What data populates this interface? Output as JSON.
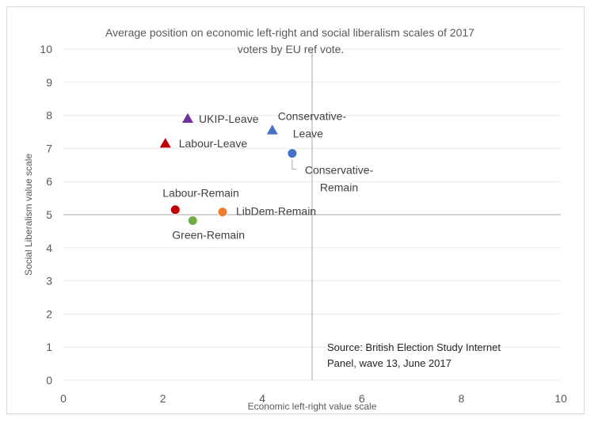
{
  "chart_data": {
    "type": "scatter",
    "title": "Average position on economic left-right and social liberalism scales of 2017 voters by EU ref vote.",
    "title_lines": [
      "Average position on economic left-right and social liberalism scales of 2017",
      "voters by EU ref vote."
    ],
    "xlabel": "Economic left-right value scale",
    "ylabel": "Social Liberalism value scale",
    "xlim": [
      0,
      10
    ],
    "ylim": [
      0,
      10
    ],
    "x_ticks": [
      0,
      2,
      4,
      6,
      8,
      10
    ],
    "y_ticks": [
      0,
      1,
      2,
      3,
      4,
      5,
      6,
      7,
      8,
      9,
      10
    ],
    "reference_lines": {
      "x": 5,
      "y": 5
    },
    "gridlines": "horizontal",
    "points": [
      {
        "name": "UKIP-Leave",
        "label_lines": [
          "UKIP-Leave"
        ],
        "x": 2.5,
        "y": 7.9,
        "marker": "triangle",
        "color": "#7030a0"
      },
      {
        "name": "Labour-Leave",
        "label_lines": [
          "Labour-Leave"
        ],
        "x": 2.05,
        "y": 7.15,
        "marker": "triangle",
        "color": "#c00000"
      },
      {
        "name": "Conservative-Leave",
        "label_lines": [
          "Conservative-",
          "Leave"
        ],
        "x": 4.2,
        "y": 7.55,
        "marker": "triangle",
        "color": "#4472c4"
      },
      {
        "name": "Conservative-Remain",
        "label_lines": [
          "Conservative-",
          "Remain"
        ],
        "x": 4.6,
        "y": 6.85,
        "marker": "circle",
        "color": "#4472c4"
      },
      {
        "name": "Labour-Remain",
        "label_lines": [
          "Labour-Remain"
        ],
        "x": 2.25,
        "y": 5.15,
        "marker": "circle",
        "color": "#c00000"
      },
      {
        "name": "LibDem-Remain",
        "label_lines": [
          "LibDem-Remain"
        ],
        "x": 3.2,
        "y": 5.08,
        "marker": "circle",
        "color": "#ed7d31"
      },
      {
        "name": "Green-Remain",
        "label_lines": [
          "Green-Remain"
        ],
        "x": 2.6,
        "y": 4.82,
        "marker": "circle",
        "color": "#70ad47"
      }
    ],
    "annotation_lines": [
      "Source: British Election Study Internet",
      "Panel, wave 13, June 2017"
    ]
  }
}
